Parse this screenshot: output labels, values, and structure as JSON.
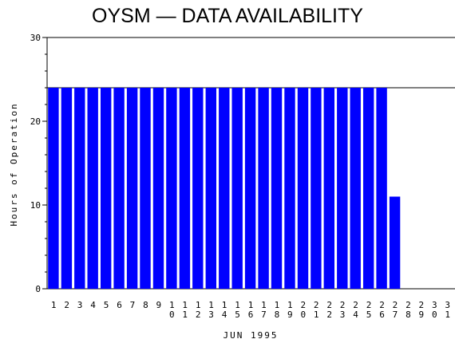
{
  "chart_data": {
    "type": "bar",
    "title": "OYSM — DATA AVAILABILITY",
    "xlabel": "JUN 1995",
    "ylabel": "Hours of Operation",
    "categories": [
      "1",
      "2",
      "3",
      "4",
      "5",
      "6",
      "7",
      "8",
      "9",
      "10",
      "11",
      "12",
      "13",
      "14",
      "15",
      "16",
      "17",
      "18",
      "19",
      "20",
      "21",
      "22",
      "23",
      "24",
      "25",
      "26",
      "27",
      "28",
      "29",
      "30",
      "31"
    ],
    "values": [
      24,
      24,
      24,
      24,
      24,
      24,
      24,
      24,
      24,
      24,
      24,
      24,
      24,
      24,
      24,
      24,
      24,
      24,
      24,
      24,
      24,
      24,
      24,
      24,
      24,
      24,
      11,
      0,
      0,
      0,
      0
    ],
    "ylim": [
      0,
      30
    ],
    "yticks": [
      0,
      10,
      20,
      30
    ],
    "reference_line": 24,
    "bar_color": "#0000ff",
    "grid": false
  }
}
